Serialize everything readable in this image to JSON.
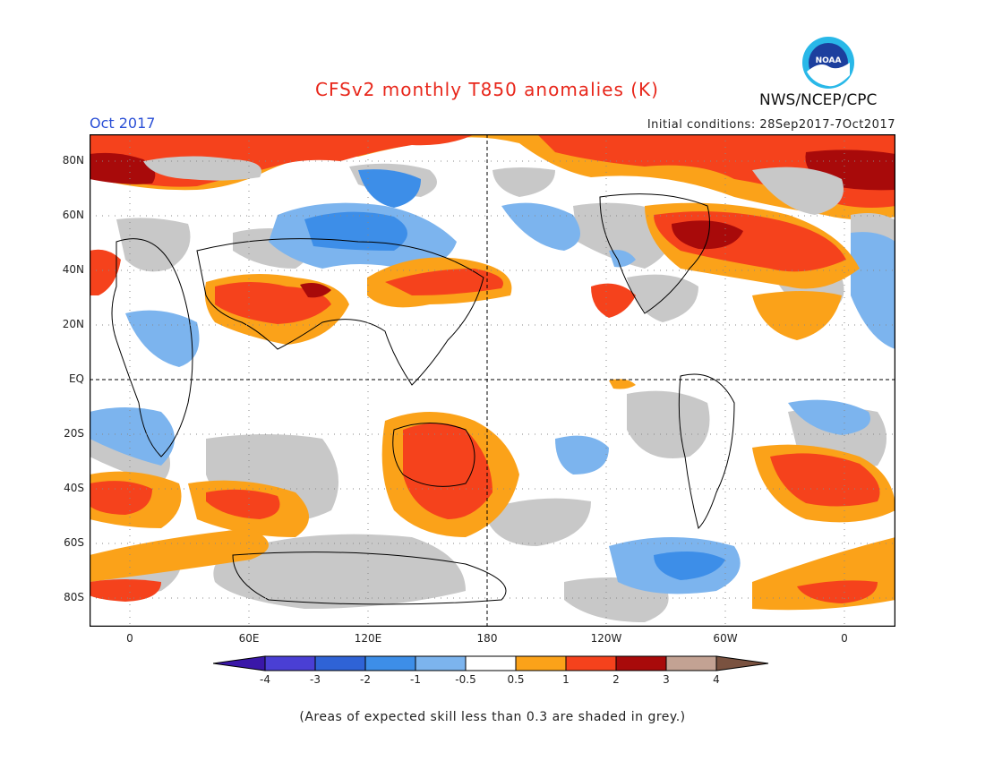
{
  "header": {
    "title": "CFSv2 monthly T850 anomalies (K)",
    "month": "Oct 2017",
    "initial_conditions": "Initial conditions: 28Sep2017-7Oct2017",
    "agency": "NWS/NCEP/CPC",
    "logo_text": "NOAA"
  },
  "map": {
    "lat_labels": [
      "80N",
      "60N",
      "40N",
      "20N",
      "EQ",
      "20S",
      "40S",
      "60S",
      "80S"
    ],
    "lon_labels": [
      "0",
      "60E",
      "120E",
      "180",
      "120W",
      "60W",
      "0"
    ],
    "colors": {
      "grey": "#c8c8c8",
      "blue_light": "#7cb4ee",
      "blue_mid": "#3d8ee8",
      "orange": "#fba219",
      "red": "#f5421c",
      "dark_red": "#a80a0a",
      "frame": "#000000"
    }
  },
  "colorbar": {
    "labels": [
      "-4",
      "-3",
      "-2",
      "-1",
      "-0.5",
      "0.5",
      "1",
      "2",
      "3",
      "4"
    ],
    "colors": [
      "#3a17a8",
      "#4a3fd4",
      "#2f63d6",
      "#3d8ee8",
      "#7cb4ee",
      "#ffffff",
      "#fba219",
      "#f5421c",
      "#a80a0a",
      "#c3a293",
      "#7a5240"
    ]
  },
  "footer": {
    "note": "(Areas of expected skill less than 0.3 are shaded in grey.)"
  }
}
